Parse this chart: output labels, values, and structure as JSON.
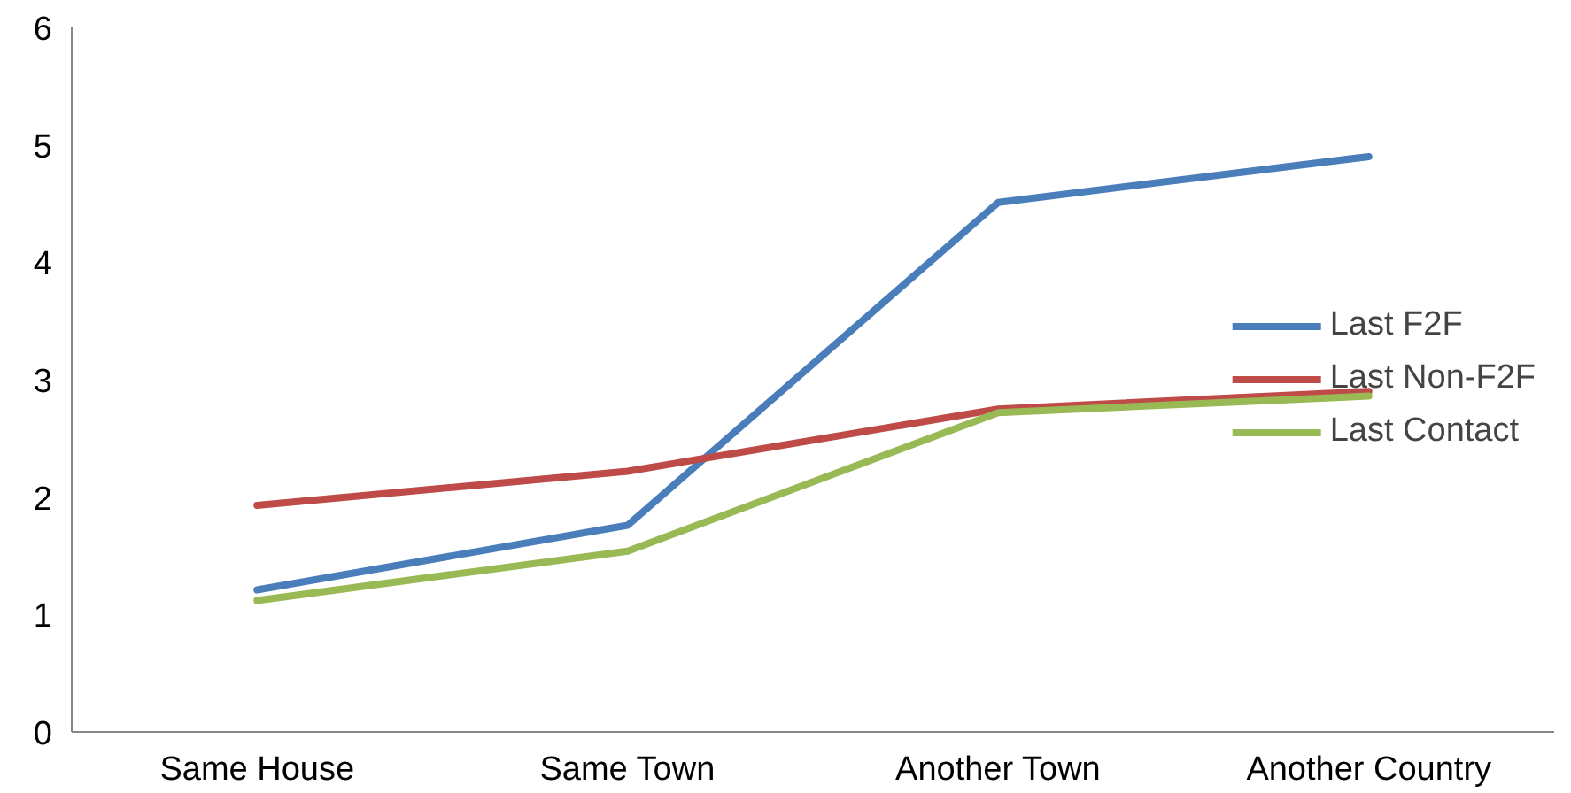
{
  "chart_data": {
    "type": "line",
    "categories": [
      "Same House",
      "Same Town",
      "Another Town",
      "Another Country"
    ],
    "series": [
      {
        "name": "Last F2F",
        "color": "#4a7ebb",
        "values": [
          1.21,
          1.76,
          4.51,
          4.9
        ]
      },
      {
        "name": "Last Non-F2F",
        "color": "#be4b48",
        "values": [
          1.93,
          2.22,
          2.75,
          2.9
        ]
      },
      {
        "name": "Last Contact",
        "color": "#98b954",
        "values": [
          1.12,
          1.54,
          2.72,
          2.86
        ]
      }
    ],
    "ylim": [
      0,
      6
    ],
    "yticks": [
      0,
      1,
      2,
      3,
      4,
      5,
      6
    ],
    "grid": false,
    "legend": "right",
    "marker": "none",
    "line_style": "solid"
  }
}
